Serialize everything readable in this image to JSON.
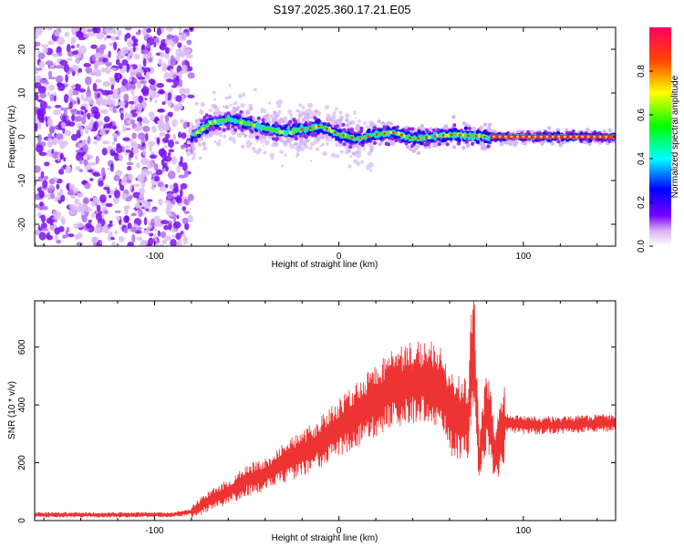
{
  "title": "S197.2025.360.17.21.E05",
  "chart_data": [
    {
      "type": "heatmap",
      "xlabel": "Height of straight line (km)",
      "ylabel": "Frequency (Hz)",
      "xlim": [
        -165,
        150
      ],
      "ylim": [
        -25,
        25
      ],
      "xticks": [
        -100,
        0,
        100
      ],
      "yticks": [
        -20,
        -10,
        0,
        10,
        20
      ],
      "colorbar": {
        "label": "Normalized spectral amplitude",
        "ticks": [
          0.0,
          0.2,
          0.4,
          0.6,
          0.8
        ],
        "range": [
          0,
          1
        ]
      },
      "noise_region_x": [
        -165,
        -80
      ],
      "ridge": [
        {
          "x": -80,
          "y": 0
        },
        {
          "x": -70,
          "y": 3
        },
        {
          "x": -60,
          "y": 4
        },
        {
          "x": -45,
          "y": 2.5
        },
        {
          "x": -30,
          "y": 1
        },
        {
          "x": -15,
          "y": 2
        },
        {
          "x": -10,
          "y": 2.5
        },
        {
          "x": 0,
          "y": 0.5
        },
        {
          "x": 10,
          "y": -0.5
        },
        {
          "x": 20,
          "y": 0.5
        },
        {
          "x": 30,
          "y": 1
        },
        {
          "x": 40,
          "y": -0.5
        },
        {
          "x": 60,
          "y": 0.5
        },
        {
          "x": 80,
          "y": 0
        },
        {
          "x": 150,
          "y": 0
        }
      ]
    },
    {
      "type": "line",
      "color": "#ee3333",
      "xlabel": "Height of straight line (km)",
      "ylabel": "SNR (10 * v/v)",
      "xlim": [
        -165,
        150
      ],
      "ylim": [
        0,
        760
      ],
      "xticks": [
        -100,
        0,
        100
      ],
      "yticks": [
        0,
        200,
        400,
        600
      ],
      "series": [
        {
          "name": "SNR",
          "x": [
            -165,
            -120,
            -90,
            -80,
            -70,
            -60,
            -50,
            -40,
            -30,
            -20,
            -10,
            0,
            10,
            20,
            30,
            40,
            50,
            55,
            60,
            70,
            73,
            76,
            80,
            85,
            90,
            100,
            120,
            150
          ],
          "y": [
            20,
            20,
            20,
            30,
            70,
            100,
            140,
            160,
            200,
            230,
            270,
            320,
            370,
            420,
            460,
            480,
            480,
            460,
            380,
            350,
            620,
            200,
            390,
            230,
            340,
            330,
            330,
            340
          ]
        }
      ]
    }
  ]
}
